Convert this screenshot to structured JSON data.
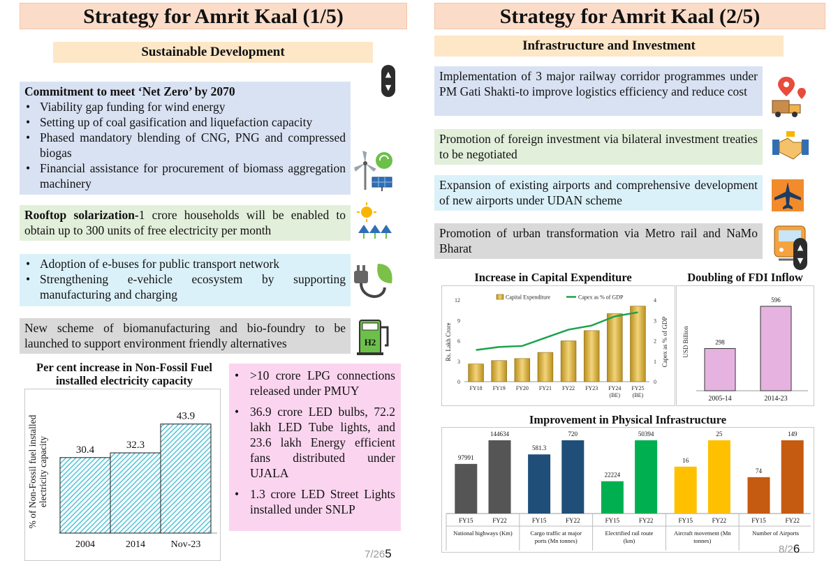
{
  "left": {
    "title": "Strategy for Amrit Kaal (1/5)",
    "section": "Sustainable Development",
    "net_zero": {
      "heading": "Commitment to meet ‘Net Zero’ by 2070",
      "items": [
        "Viability gap funding for wind energy",
        "Setting up of coal gasification and liquefaction capacity",
        "Phased mandatory blending of CNG, PNG and compressed biogas",
        "Financial assistance for procurement of biomass aggregation machinery"
      ]
    },
    "rooftop": {
      "bold": "Rooftop solarization-",
      "text": "1 crore households will be enabled to obtain up to 300 units of free electricity per month"
    },
    "ebus": {
      "items": [
        "Adoption of e-buses for public transport network",
        "Strengthening e-vehicle ecosystem by supporting manufacturing and charging"
      ]
    },
    "biomanufacturing": "New scheme of biomanufacturing and bio-foundry to be launched to support environment friendly alternatives",
    "schemes": {
      "items": [
        ">10 crore LPG connections released under PMUY",
        "36.9 crore LED bulbs, 72.2 lakh LED Tube lights, and 23.6 lakh Energy efficient fans distributed under UJALA",
        "1.3 crore LED Street Lights installed under SNLP"
      ]
    },
    "page_small": "7/26",
    "page_big": "5",
    "h2_label": "H2"
  },
  "right": {
    "title": "Strategy for Amrit Kaal (2/5)",
    "section": "Infrastructure and Investment",
    "items": [
      "Implementation of 3 major railway corridor programmes under PM Gati Shakti-to improve logistics efficiency and reduce cost",
      "Promotion of foreign investment via bilateral investment treaties to be negotiated",
      "Expansion of existing airports and comprehensive development of new airports under UDAN scheme",
      "Promotion of urban transformation via Metro rail and NaMo Bharat"
    ],
    "page_small": "8/2",
    "page_big": "6"
  },
  "chart_data": [
    {
      "type": "bar",
      "title": "Per cent increase in Non-Fossil Fuel installed electricity capacity",
      "categories": [
        "2004",
        "2014",
        "Nov-23"
      ],
      "values": [
        30.4,
        32.3,
        43.9
      ],
      "value_labels": [
        "30.4",
        "32.3",
        "43.9"
      ],
      "ylabel": "% of Non-Fossil fuel installed electricity capacity",
      "ylim": [
        0,
        50
      ],
      "color": "#4fc3d9"
    },
    {
      "type": "bar+line",
      "title": "Increase in Capital Expenditure",
      "categories": [
        "FY18",
        "FY19",
        "FY20",
        "FY21",
        "FY22",
        "FY23",
        "FY24",
        "FY25"
      ],
      "category_sublabels": [
        "",
        "",
        "",
        "",
        "",
        "",
        "(BE)",
        "(BE)"
      ],
      "series": [
        {
          "name": "Capital Expenditure",
          "values": [
            2.6,
            3.1,
            3.4,
            4.3,
            6.0,
            7.5,
            10.0,
            11.1
          ],
          "color": "#d6b23a",
          "axis": "left"
        },
        {
          "name": "Capex as % of GDP",
          "values": [
            1.55,
            1.7,
            1.75,
            2.15,
            2.55,
            2.75,
            3.2,
            3.4
          ],
          "color": "#1aa34a",
          "axis": "right"
        }
      ],
      "ylabel": "Rs. Lakh Crore",
      "y2label": "Capex as % of GDP",
      "yticks": [
        "0",
        "3",
        "6",
        "9",
        "12"
      ],
      "y2ticks": [
        "0",
        "1",
        "2",
        "3",
        "4"
      ],
      "ylim": [
        0,
        12
      ],
      "y2lim": [
        0,
        4
      ]
    },
    {
      "type": "bar",
      "title": "Doubling of FDI Inflow",
      "categories": [
        "2005-14",
        "2014-23"
      ],
      "values": [
        298,
        596
      ],
      "value_labels": [
        "298",
        "596"
      ],
      "ylabel": "USD Billion",
      "ylim": [
        0,
        650
      ],
      "color": "#e6b3e0"
    },
    {
      "type": "grouped-bar",
      "title": "Improvement in Physical Infrastructure",
      "groups": [
        {
          "name": "National highways (Km)",
          "labels": [
            "FY15",
            "FY22"
          ],
          "values": [
            97991,
            144634
          ],
          "value_labels": [
            "97991",
            "144634"
          ],
          "color": "#555555"
        },
        {
          "name": "Cargo traffic at major ports (Mn tonnes)",
          "labels": [
            "FY15",
            "FY22"
          ],
          "values": [
            581.3,
            720
          ],
          "value_labels": [
            "581.3",
            "720"
          ],
          "color": "#1f4e79"
        },
        {
          "name": "Electrified rail route (km)",
          "labels": [
            "FY15",
            "FY22"
          ],
          "values": [
            22224,
            50394
          ],
          "value_labels": [
            "22224",
            "50394"
          ],
          "color": "#00b050"
        },
        {
          "name": "Aircraft movement (Mn tonnes)",
          "labels": [
            "FY15",
            "FY22"
          ],
          "values": [
            16,
            25
          ],
          "value_labels": [
            "16",
            "25"
          ],
          "color": "#ffc000"
        },
        {
          "name": "Number of Airports",
          "labels": [
            "FY15",
            "FY22"
          ],
          "values": [
            74,
            149
          ],
          "value_labels": [
            "74",
            "149"
          ],
          "color": "#c55a11"
        }
      ]
    }
  ]
}
